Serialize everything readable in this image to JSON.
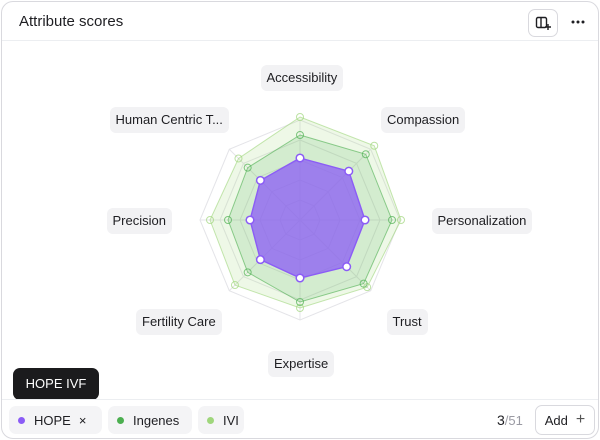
{
  "header": {
    "title": "Attribute scores"
  },
  "chart_data": {
    "type": "radar",
    "axes": [
      "Accessibility",
      "Compassion",
      "Personalization",
      "Trust",
      "Expertise",
      "Fertility Care",
      "Precision",
      "Human Centric T..."
    ],
    "range": [
      0,
      10
    ],
    "series": [
      {
        "name": "HOPE IVF",
        "color": "#8b5cf6",
        "values": [
          6.2,
          6.9,
          6.5,
          6.6,
          5.8,
          5.6,
          5.0,
          5.6
        ]
      },
      {
        "name": "Ingenes",
        "color": "#4caf50",
        "values": [
          8.5,
          9.3,
          9.2,
          9.0,
          8.2,
          7.4,
          7.2,
          7.4
        ]
      },
      {
        "name": "IVI",
        "color": "#9fd67c",
        "values": [
          10.3,
          10.5,
          10.1,
          9.5,
          8.8,
          9.2,
          9.0,
          8.7
        ]
      }
    ]
  },
  "tooltip": {
    "text": "HOPE IVF"
  },
  "legend": {
    "chips": [
      {
        "label": "HOPE",
        "color": "#8b5cf6",
        "close": "×"
      },
      {
        "label": "Ingenes",
        "color": "#4caf50"
      },
      {
        "label": "IVI",
        "color": "#9fd67c"
      }
    ],
    "counter_current": "3",
    "counter_total": "/51",
    "add_label": "Add",
    "add_symbol": "+"
  }
}
